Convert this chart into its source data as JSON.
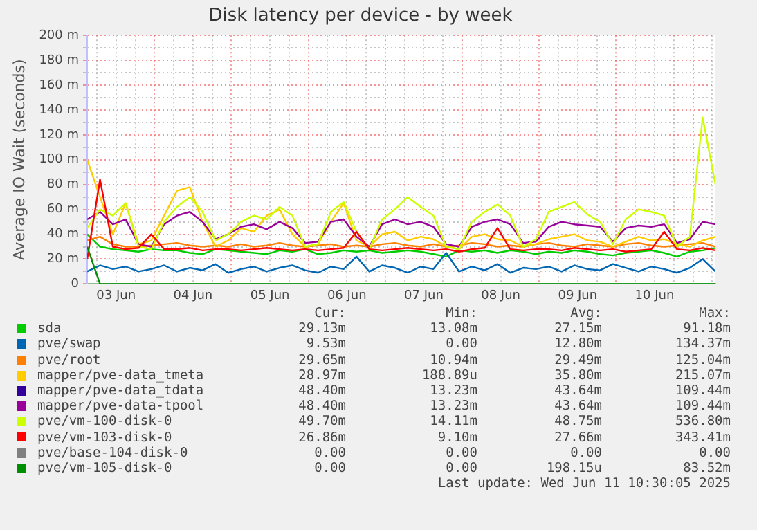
{
  "chart_data": {
    "type": "line",
    "title": "Disk latency per device - by week",
    "ylabel": "Average IO Wait (seconds)",
    "x": [
      "2025-06-03T03:00",
      "2025-06-03T07:00",
      "2025-06-03T11:00",
      "2025-06-03T15:00",
      "2025-06-03T19:00",
      "2025-06-03T23:00",
      "2025-06-04T03:00",
      "2025-06-04T07:00",
      "2025-06-04T11:00",
      "2025-06-04T15:00",
      "2025-06-04T19:00",
      "2025-06-04T23:00",
      "2025-06-05T03:00",
      "2025-06-05T07:00",
      "2025-06-05T11:00",
      "2025-06-05T15:00",
      "2025-06-05T19:00",
      "2025-06-05T23:00",
      "2025-06-06T03:00",
      "2025-06-06T07:00",
      "2025-06-06T11:00",
      "2025-06-06T15:00",
      "2025-06-06T19:00",
      "2025-06-06T23:00",
      "2025-06-07T03:00",
      "2025-06-07T07:00",
      "2025-06-07T11:00",
      "2025-06-07T15:00",
      "2025-06-07T19:00",
      "2025-06-07T23:00",
      "2025-06-08T03:00",
      "2025-06-08T07:00",
      "2025-06-08T11:00",
      "2025-06-08T15:00",
      "2025-06-08T19:00",
      "2025-06-08T23:00",
      "2025-06-09T03:00",
      "2025-06-09T07:00",
      "2025-06-09T11:00",
      "2025-06-09T15:00",
      "2025-06-09T19:00",
      "2025-06-09T23:00",
      "2025-06-10T03:00",
      "2025-06-10T07:00",
      "2025-06-10T11:00",
      "2025-06-10T15:00",
      "2025-06-10T19:00",
      "2025-06-10T23:00",
      "2025-06-11T03:00",
      "2025-06-11T07:00"
    ],
    "xlim": [
      "2025-06-03T03:00",
      "2025-06-11T07:00"
    ],
    "xticks": [
      {
        "value": "2025-06-03T06:00",
        "label": null
      },
      {
        "value": "2025-06-03T12:00",
        "label": "03 Jun"
      },
      {
        "value": "2025-06-03T18:00",
        "label": null
      },
      {
        "value": "2025-06-04T00:00",
        "label": null
      },
      {
        "value": "2025-06-04T06:00",
        "label": null
      },
      {
        "value": "2025-06-04T12:00",
        "label": "04 Jun"
      },
      {
        "value": "2025-06-04T18:00",
        "label": null
      },
      {
        "value": "2025-06-05T00:00",
        "label": null
      },
      {
        "value": "2025-06-05T06:00",
        "label": null
      },
      {
        "value": "2025-06-05T12:00",
        "label": "05 Jun"
      },
      {
        "value": "2025-06-05T18:00",
        "label": null
      },
      {
        "value": "2025-06-06T00:00",
        "label": null
      },
      {
        "value": "2025-06-06T06:00",
        "label": null
      },
      {
        "value": "2025-06-06T12:00",
        "label": "06 Jun"
      },
      {
        "value": "2025-06-06T18:00",
        "label": null
      },
      {
        "value": "2025-06-07T00:00",
        "label": null
      },
      {
        "value": "2025-06-07T06:00",
        "label": null
      },
      {
        "value": "2025-06-07T12:00",
        "label": "07 Jun"
      },
      {
        "value": "2025-06-07T18:00",
        "label": null
      },
      {
        "value": "2025-06-08T00:00",
        "label": null
      },
      {
        "value": "2025-06-08T06:00",
        "label": null
      },
      {
        "value": "2025-06-08T12:00",
        "label": "08 Jun"
      },
      {
        "value": "2025-06-08T18:00",
        "label": null
      },
      {
        "value": "2025-06-09T00:00",
        "label": null
      },
      {
        "value": "2025-06-09T06:00",
        "label": null
      },
      {
        "value": "2025-06-09T12:00",
        "label": "09 Jun"
      },
      {
        "value": "2025-06-09T18:00",
        "label": null
      },
      {
        "value": "2025-06-10T00:00",
        "label": null
      },
      {
        "value": "2025-06-10T06:00",
        "label": null
      },
      {
        "value": "2025-06-10T12:00",
        "label": "10 Jun"
      },
      {
        "value": "2025-06-10T18:00",
        "label": null
      },
      {
        "value": "2025-06-11T00:00",
        "label": null
      },
      {
        "value": "2025-06-11T06:00",
        "label": null
      }
    ],
    "ylim": [
      0,
      200
    ],
    "yticks": [
      {
        "value": 0,
        "label": "0"
      },
      {
        "value": 10,
        "label": null
      },
      {
        "value": 20,
        "label": "20 m"
      },
      {
        "value": 30,
        "label": null
      },
      {
        "value": 40,
        "label": "40 m"
      },
      {
        "value": 50,
        "label": null
      },
      {
        "value": 60,
        "label": "60 m"
      },
      {
        "value": 70,
        "label": null
      },
      {
        "value": 80,
        "label": "80 m"
      },
      {
        "value": 90,
        "label": null
      },
      {
        "value": 100,
        "label": "100 m"
      },
      {
        "value": 110,
        "label": null
      },
      {
        "value": 120,
        "label": "120 m"
      },
      {
        "value": 130,
        "label": null
      },
      {
        "value": 140,
        "label": "140 m"
      },
      {
        "value": 150,
        "label": null
      },
      {
        "value": 160,
        "label": "160 m"
      },
      {
        "value": 170,
        "label": null
      },
      {
        "value": 180,
        "label": "180 m"
      },
      {
        "value": 190,
        "label": null
      },
      {
        "value": 200,
        "label": "200 m"
      }
    ],
    "grid": true,
    "legend": "bottom",
    "marker": "none",
    "line_style": "solid",
    "series": [
      {
        "name": "sda",
        "color": "#00cc00",
        "values": [
          40,
          30,
          28,
          27,
          26,
          28,
          27,
          27,
          25,
          24,
          28,
          27,
          26,
          25,
          24,
          27,
          26,
          28,
          24,
          25,
          27,
          26,
          27,
          25,
          26,
          27,
          26,
          24,
          22,
          27,
          26,
          27,
          25,
          27,
          26,
          24,
          26,
          25,
          27,
          26,
          24,
          23,
          25,
          26,
          27,
          25,
          22,
          26,
          27,
          29
        ]
      },
      {
        "name": "pve/swap",
        "color": "#0066b3",
        "values": [
          10,
          15,
          12,
          14,
          10,
          12,
          15,
          10,
          13,
          11,
          16,
          9,
          12,
          14,
          10,
          13,
          15,
          11,
          9,
          14,
          12,
          22,
          10,
          15,
          13,
          9,
          14,
          12,
          25,
          10,
          14,
          11,
          16,
          9,
          13,
          12,
          14,
          10,
          15,
          12,
          11,
          16,
          13,
          10,
          14,
          12,
          9,
          13,
          20,
          10
        ]
      },
      {
        "name": "pve/root",
        "color": "#ff8000",
        "values": [
          35,
          38,
          32,
          30,
          30,
          31,
          32,
          33,
          31,
          30,
          31,
          30,
          32,
          30,
          31,
          33,
          31,
          30,
          31,
          32,
          30,
          31,
          30,
          32,
          33,
          31,
          30,
          32,
          30,
          31,
          33,
          32,
          30,
          31,
          30,
          32,
          33,
          31,
          30,
          32,
          31,
          30,
          32,
          33,
          31,
          30,
          31,
          32,
          33,
          30
        ]
      },
      {
        "name": "mapper/pve-data_tmeta",
        "color": "#ffcc00",
        "values": [
          100,
          70,
          40,
          65,
          32,
          35,
          55,
          75,
          78,
          50,
          30,
          35,
          45,
          42,
          55,
          60,
          40,
          30,
          32,
          50,
          65,
          35,
          30,
          40,
          42,
          35,
          38,
          36,
          30,
          28,
          38,
          40,
          36,
          35,
          30,
          32,
          36,
          38,
          40,
          35,
          34,
          30,
          34,
          38,
          35,
          36,
          32,
          30,
          35,
          38
        ]
      },
      {
        "name": "mapper/pve-data_tdata",
        "color": "#330099",
        "values": [
          null,
          null,
          null,
          null,
          null,
          null,
          null,
          null,
          null,
          null,
          null,
          null,
          null,
          null,
          null,
          null,
          null,
          null,
          null,
          null,
          null,
          null,
          null,
          null,
          null,
          null,
          null,
          null,
          null,
          null,
          null,
          null,
          null,
          null,
          null,
          null,
          null,
          null,
          null,
          null,
          null,
          null,
          null,
          null,
          null,
          null,
          null,
          null,
          null,
          null
        ]
      },
      {
        "name": "mapper/pve-data-tpool",
        "color": "#990099",
        "values": [
          52,
          58,
          48,
          52,
          32,
          30,
          48,
          55,
          58,
          50,
          36,
          40,
          46,
          48,
          44,
          50,
          45,
          33,
          34,
          50,
          52,
          38,
          30,
          48,
          52,
          48,
          50,
          46,
          32,
          30,
          46,
          50,
          52,
          48,
          33,
          34,
          46,
          50,
          48,
          47,
          46,
          34,
          45,
          47,
          46,
          48,
          33,
          36,
          50,
          48
        ]
      },
      {
        "name": "pve/vm-100-disk-0",
        "color": "#ccff00",
        "values": [
          45,
          60,
          55,
          65,
          30,
          28,
          50,
          62,
          70,
          58,
          35,
          40,
          50,
          55,
          52,
          62,
          55,
          30,
          32,
          58,
          66,
          42,
          28,
          52,
          60,
          70,
          62,
          55,
          30,
          28,
          50,
          58,
          64,
          55,
          30,
          36,
          58,
          62,
          66,
          56,
          50,
          32,
          52,
          60,
          58,
          55,
          30,
          38,
          134,
          80
        ]
      },
      {
        "name": "pve/vm-103-disk-0",
        "color": "#ff0000",
        "values": [
          20,
          84,
          30,
          28,
          29,
          40,
          28,
          28,
          29,
          27,
          28,
          28,
          27,
          28,
          29,
          28,
          27,
          28,
          27,
          28,
          29,
          42,
          28,
          27,
          28,
          29,
          28,
          27,
          28,
          26,
          28,
          29,
          45,
          28,
          27,
          28,
          28,
          27,
          29,
          28,
          27,
          28,
          26,
          27,
          28,
          42,
          28,
          27,
          29,
          27
        ]
      },
      {
        "name": "pve/base-104-disk-0",
        "color": "#808080",
        "values": [
          null,
          null,
          null,
          null,
          null,
          null,
          null,
          null,
          null,
          null,
          null,
          null,
          null,
          null,
          null,
          null,
          null,
          null,
          null,
          null,
          null,
          null,
          null,
          null,
          null,
          null,
          null,
          null,
          null,
          null,
          null,
          null,
          null,
          null,
          null,
          null,
          null,
          null,
          null,
          null,
          null,
          null,
          null,
          null,
          null,
          null,
          null,
          null,
          null,
          null
        ]
      },
      {
        "name": "pve/vm-105-disk-0",
        "color": "#008f00",
        "values": [
          30,
          0,
          0,
          0,
          0,
          0,
          0,
          0,
          0,
          0,
          0,
          0,
          0,
          0,
          0,
          0,
          0,
          0,
          0,
          0,
          0,
          0,
          0,
          0,
          0,
          0,
          0,
          0,
          0,
          0,
          0,
          0,
          0,
          0,
          0,
          0,
          0,
          0,
          0,
          0,
          0,
          0,
          0,
          0,
          0,
          0,
          0,
          0,
          0,
          0
        ]
      }
    ],
    "annotations": [
      "Cur:",
      "Min:",
      "Avg:",
      "Max:",
      "29.13m",
      "13.08m",
      "27.15m",
      "91.18m",
      "9.53m",
      "0.00",
      "12.80m",
      "134.37m",
      "29.65m",
      "10.94m",
      "29.49m",
      "125.04m",
      "28.97m",
      "188.89u",
      "35.80m",
      "215.07m",
      "48.40m",
      "13.23m",
      "43.64m",
      "109.44m",
      "48.40m",
      "13.23m",
      "43.64m",
      "109.44m",
      "49.70m",
      "14.11m",
      "48.75m",
      "536.80m",
      "26.86m",
      "9.10m",
      "27.66m",
      "343.41m",
      "0.00",
      "0.00",
      "0.00",
      "0.00",
      "0.00",
      "0.00",
      "198.15u",
      "83.52m",
      "Last update: Wed Jun 11 10:30:05 2025"
    ]
  }
}
